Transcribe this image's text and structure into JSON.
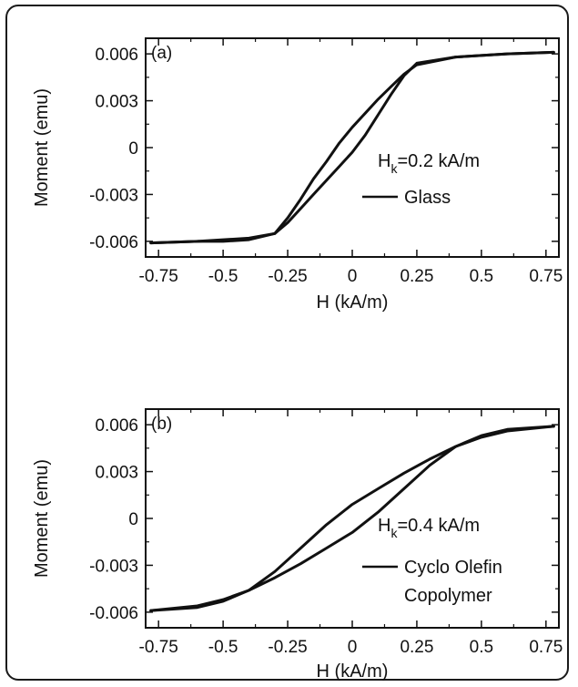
{
  "chart_data": [
    {
      "type": "line",
      "panel_label": "(a)",
      "xlabel": "H (kA/m)",
      "ylabel": "Moment (emu)",
      "xlim": [
        -0.8,
        0.8
      ],
      "ylim": [
        -0.007,
        0.007
      ],
      "xticks": [
        -0.75,
        -0.5,
        -0.25,
        0,
        0.25,
        0.5,
        0.75
      ],
      "xtick_labels": [
        "-0.75",
        "-0.5",
        "-0.25",
        "0",
        "0.25",
        "0.5",
        "0.75"
      ],
      "yticks": [
        0.006,
        0.003,
        0,
        -0.003,
        -0.006
      ],
      "ytick_labels": [
        "0.006",
        "0.003",
        "0",
        "-0.003",
        "-0.006"
      ],
      "annotation": {
        "base": "H",
        "sub": "k",
        "rest": "=0.2 kA/m"
      },
      "legend": {
        "placement": "right",
        "labels": [
          "Glass"
        ]
      },
      "grid": false,
      "series": [
        {
          "name": "Glass",
          "branch_descending": {
            "x": [
              0.78,
              0.6,
              0.4,
              0.25,
              0.2,
              0.15,
              0.1,
              0.05,
              0.0,
              -0.05,
              -0.1,
              -0.15,
              -0.2,
              -0.25,
              -0.3,
              -0.4,
              -0.5,
              -0.6,
              -0.78
            ],
            "y": [
              0.0061,
              0.006,
              0.0058,
              0.0053,
              0.0047,
              0.0039,
              0.0031,
              0.0022,
              0.0013,
              0.0003,
              -0.0009,
              -0.002,
              -0.0033,
              -0.0045,
              -0.0055,
              -0.0059,
              -0.006,
              -0.006,
              -0.0061
            ]
          },
          "branch_ascending": {
            "x": [
              -0.78,
              -0.6,
              -0.4,
              -0.3,
              -0.25,
              -0.2,
              -0.15,
              -0.1,
              -0.05,
              0.0,
              0.05,
              0.1,
              0.15,
              0.2,
              0.25,
              0.4,
              0.6,
              0.78
            ],
            "y": [
              -0.0061,
              -0.006,
              -0.0058,
              -0.0055,
              -0.0048,
              -0.0039,
              -0.003,
              -0.0021,
              -0.0012,
              -0.0003,
              0.0008,
              0.0021,
              0.0034,
              0.0046,
              0.0054,
              0.0058,
              0.006,
              0.0061
            ]
          }
        }
      ]
    },
    {
      "type": "line",
      "panel_label": "(b)",
      "xlabel": "H (kA/m)",
      "ylabel": "Moment (emu)",
      "xlim": [
        -0.8,
        0.8
      ],
      "ylim": [
        -0.007,
        0.007
      ],
      "xticks": [
        -0.75,
        -0.5,
        -0.25,
        0,
        0.25,
        0.5,
        0.75
      ],
      "xtick_labels": [
        "-0.75",
        "-0.5",
        "-0.25",
        "0",
        "0.25",
        "0.5",
        "0.75"
      ],
      "yticks": [
        0.006,
        0.003,
        0,
        -0.003,
        -0.006
      ],
      "ytick_labels": [
        "0.006",
        "0.003",
        "0",
        "-0.003",
        "-0.006"
      ],
      "annotation": {
        "base": "H",
        "sub": "k",
        "rest": "=0.4 kA/m"
      },
      "legend": {
        "placement": "right",
        "labels": [
          "Cyclo Olefin",
          "Copolymer"
        ]
      },
      "grid": false,
      "series": [
        {
          "name": "Cyclo Olefin Copolymer",
          "branch_descending": {
            "x": [
              0.78,
              0.6,
              0.5,
              0.4,
              0.3,
              0.2,
              0.1,
              0.0,
              -0.1,
              -0.2,
              -0.3,
              -0.4,
              -0.5,
              -0.6,
              -0.78
            ],
            "y": [
              0.0059,
              0.0056,
              0.0052,
              0.0046,
              0.0038,
              0.0029,
              0.0019,
              0.0009,
              -0.0004,
              -0.0019,
              -0.0034,
              -0.0046,
              -0.0053,
              -0.0057,
              -0.0059
            ]
          },
          "branch_ascending": {
            "x": [
              -0.78,
              -0.6,
              -0.5,
              -0.4,
              -0.3,
              -0.2,
              -0.1,
              0.0,
              0.1,
              0.2,
              0.3,
              0.4,
              0.5,
              0.6,
              0.78
            ],
            "y": [
              -0.0059,
              -0.0056,
              -0.0052,
              -0.0046,
              -0.0038,
              -0.0029,
              -0.0019,
              -0.0009,
              0.0004,
              0.0019,
              0.0034,
              0.0046,
              0.0053,
              0.0057,
              0.0059
            ]
          }
        }
      ]
    }
  ]
}
